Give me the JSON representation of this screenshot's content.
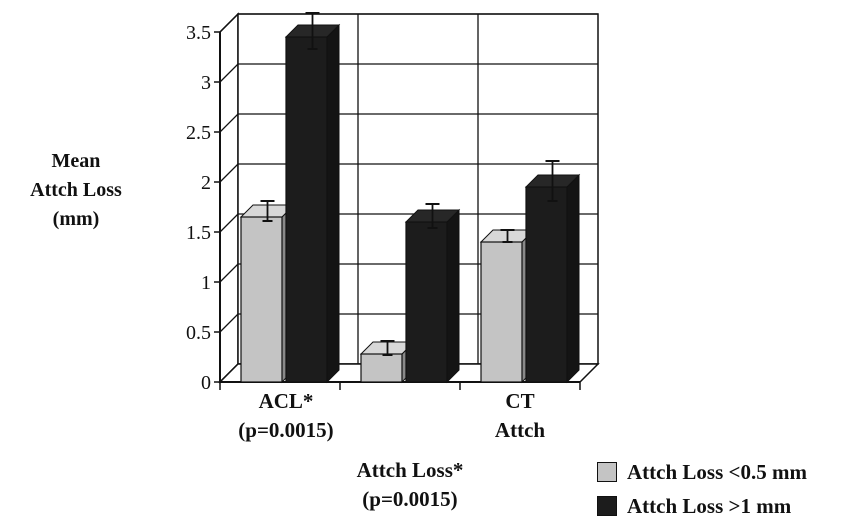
{
  "chart_data": {
    "type": "bar",
    "title": "",
    "ylabel": [
      "Mean",
      "Attch Loss",
      "(mm)"
    ],
    "ylim": [
      0,
      3.5
    ],
    "yticks": [
      "0",
      "0.5",
      "1",
      "1.5",
      "2",
      "2.5",
      "3",
      "3.5"
    ],
    "yticks_values": [
      0,
      0.5,
      1,
      1.5,
      2,
      2.5,
      3,
      3.5
    ],
    "grid": true,
    "legend_position": "bottom-right",
    "categories": [
      {
        "lines": [
          "ACL*",
          "(p=0.0015)"
        ]
      },
      {
        "lines": [
          "Attch Loss*",
          "(p=0.0015)"
        ]
      },
      {
        "lines": [
          "CT",
          "Attch"
        ]
      }
    ],
    "series": [
      {
        "name": "Attch Loss <0.5 mm",
        "color": "#c4c4c4",
        "values": [
          1.65,
          0.28,
          1.4
        ],
        "errors": [
          0.1,
          0.07,
          0.06
        ]
      },
      {
        "name": "Attch Loss >1 mm",
        "color": "#1c1c1c",
        "values": [
          3.45,
          1.6,
          1.95
        ],
        "errors": [
          0.18,
          0.12,
          0.2
        ]
      }
    ]
  }
}
